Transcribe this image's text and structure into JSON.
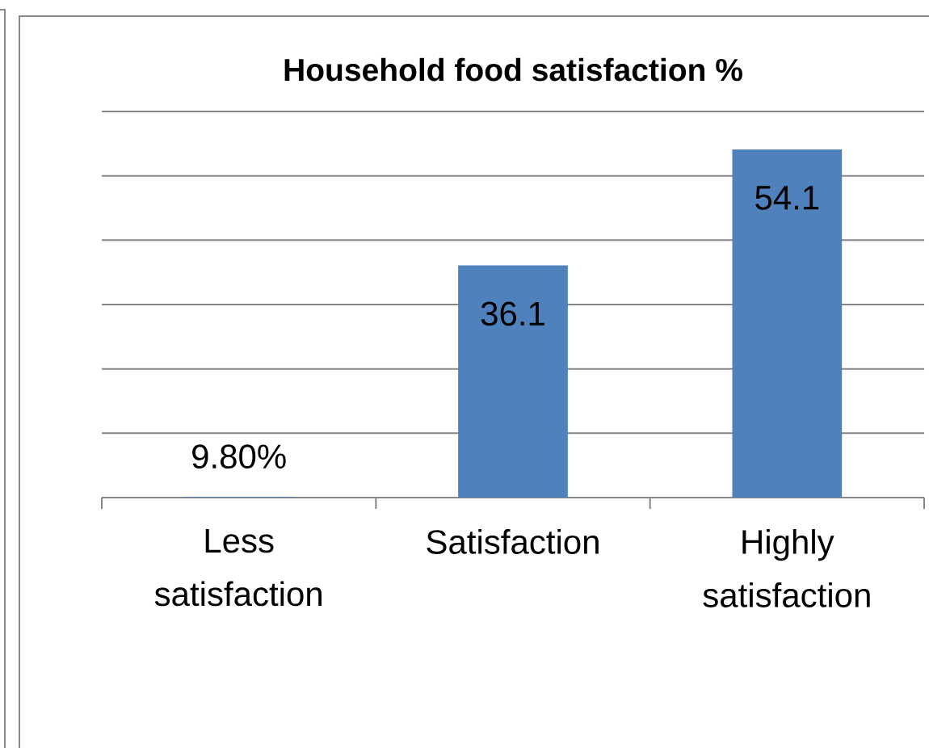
{
  "chart_data": {
    "type": "bar",
    "title": "Household food satisfaction  %",
    "categories": [
      "Less satisfaction",
      "Satisfaction",
      "Highly satisfaction"
    ],
    "values": [
      0.098,
      36.1,
      54.1
    ],
    "value_labels": [
      "9.80%",
      "36.1",
      "54.1"
    ],
    "color": "#4f81bd",
    "ylim": [
      0,
      60
    ],
    "yticks": [
      {
        "value": 0,
        "label": null
      },
      {
        "value": 10,
        "label": null
      },
      {
        "value": 20,
        "label": null
      },
      {
        "value": 30,
        "label": null
      },
      {
        "value": 40,
        "label": null
      },
      {
        "value": 50,
        "label": null
      },
      {
        "value": 60,
        "label": null
      }
    ],
    "grid": "y",
    "tick_labels": "x"
  }
}
